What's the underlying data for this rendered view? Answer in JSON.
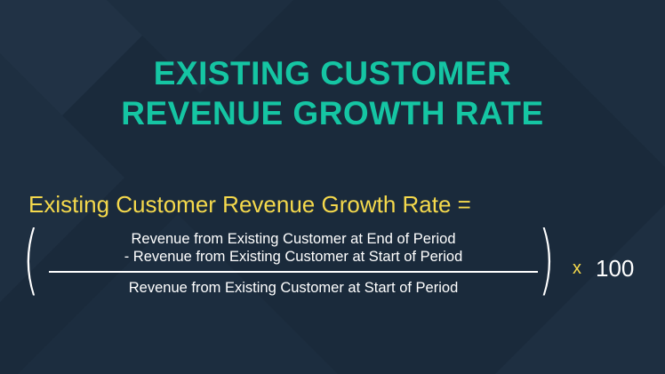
{
  "title": {
    "line1": "EXISTING CUSTOMER",
    "line2": "REVENUE GROWTH RATE"
  },
  "formula": {
    "label": "Existing Customer Revenue Growth Rate =",
    "numerator_line1": "Revenue from Existing Customer at End of Period",
    "numerator_line2": "- Revenue from Existing Customer at Start of Period",
    "denominator": "Revenue from Existing Customer at Start of Period",
    "left_paren": "(",
    "right_paren": ")",
    "multiply_sign": "x",
    "multiplier": "100"
  },
  "colors": {
    "background": "#1a2a3b",
    "title": "#15c5a3",
    "label": "#f5d94c",
    "formula_text": "#ffffff"
  }
}
